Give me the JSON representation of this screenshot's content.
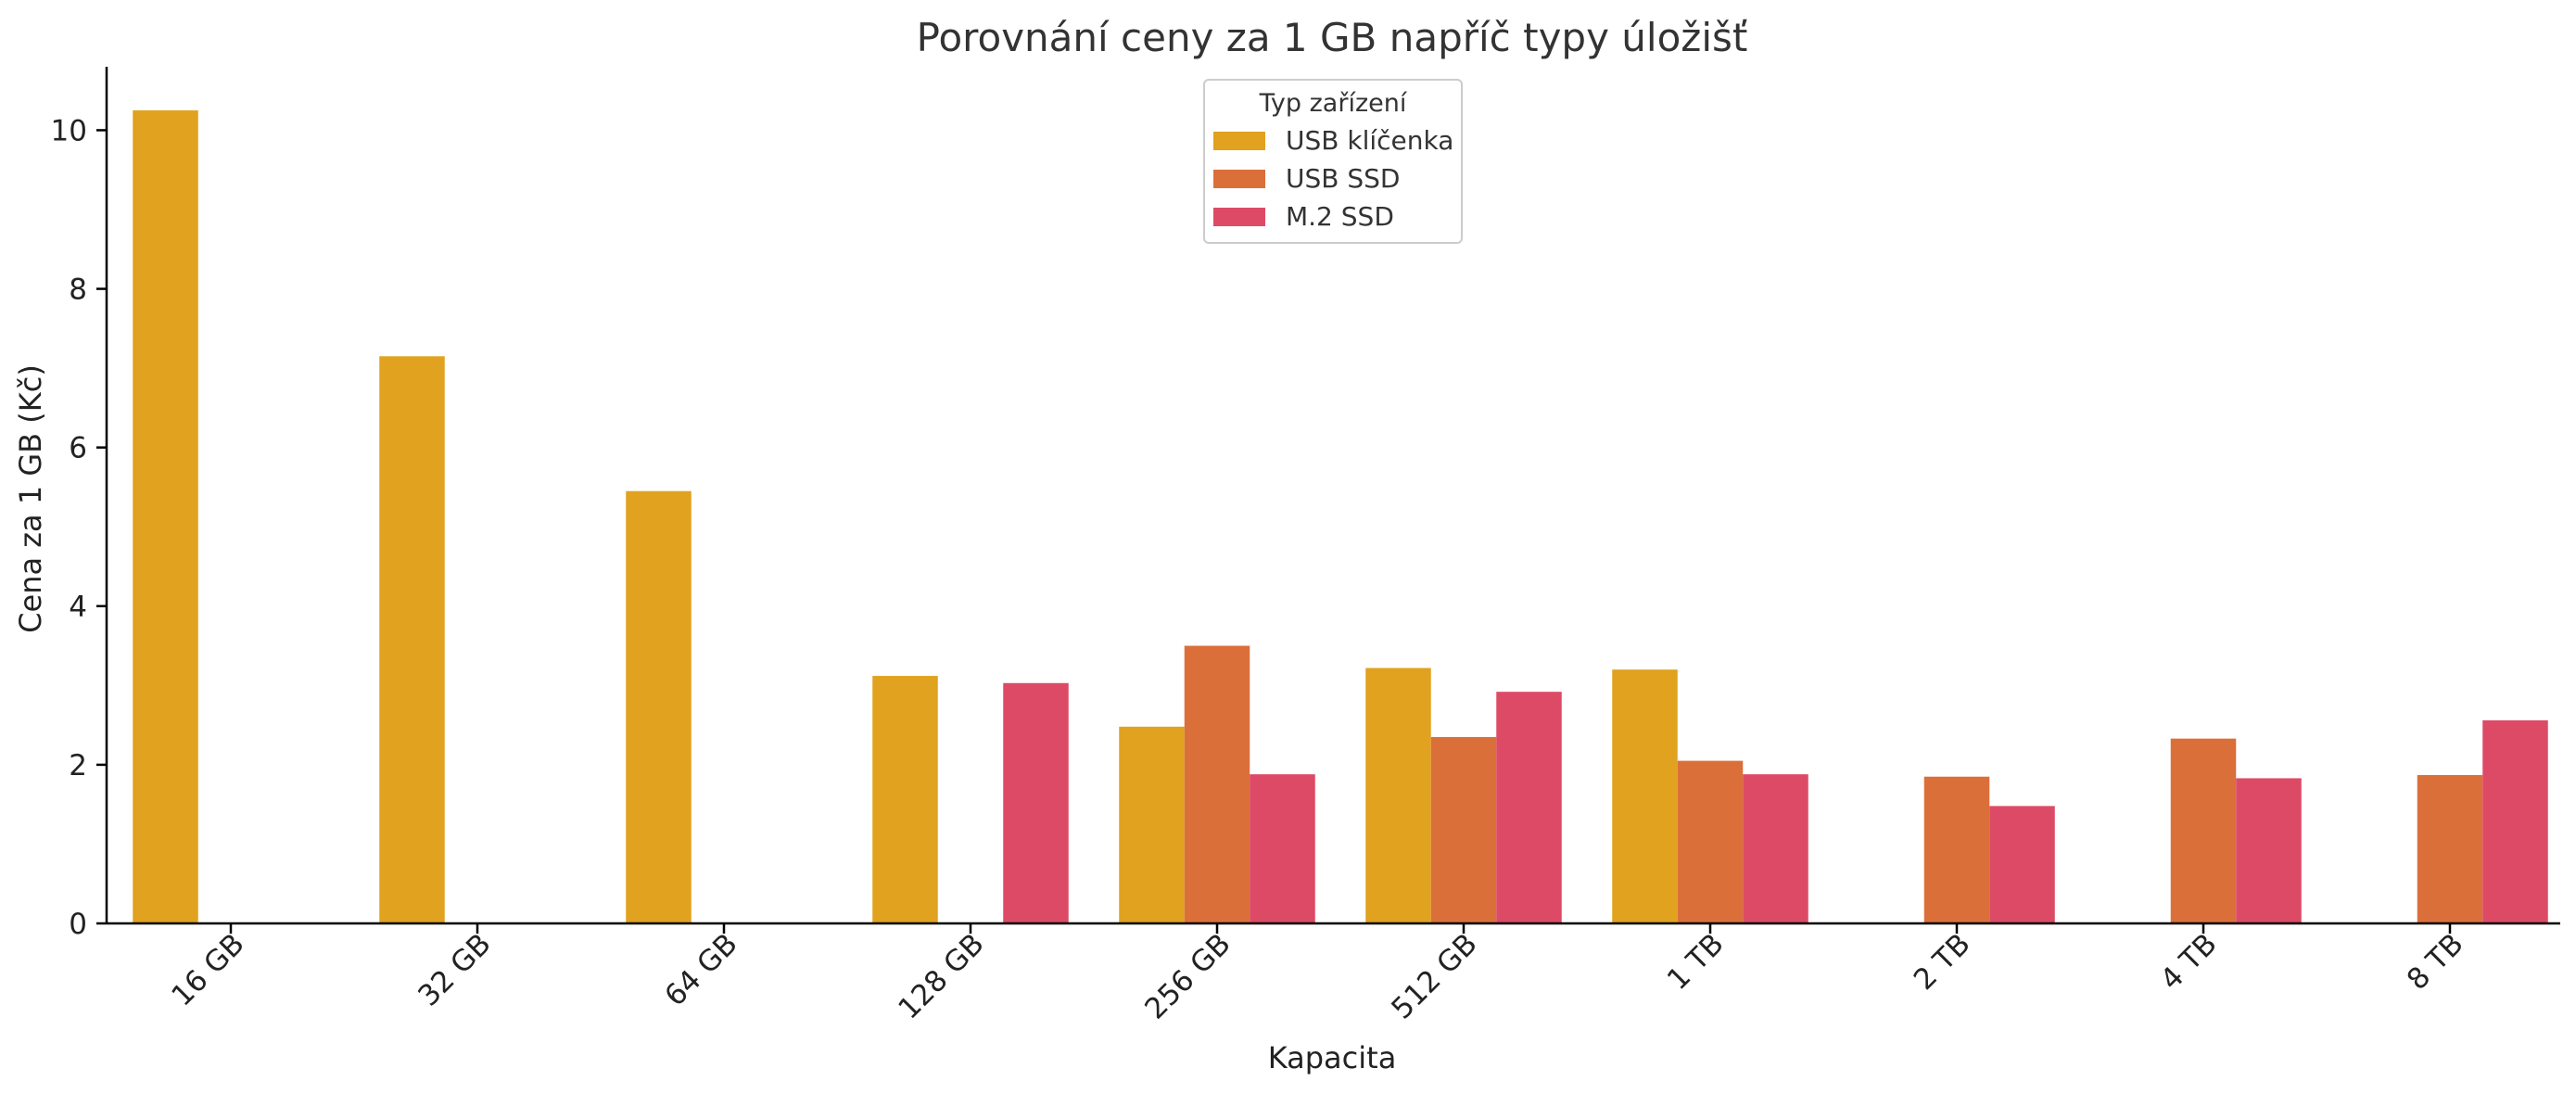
{
  "chart_data": {
    "type": "bar",
    "title": "Porovnání ceny za 1 GB napříč typy úložišť",
    "xlabel": "Kapacita",
    "ylabel": "Cena za 1 GB (Kč)",
    "categories": [
      "16 GB",
      "32 GB",
      "64 GB",
      "128 GB",
      "256 GB",
      "512 GB",
      "1 TB",
      "2 TB",
      "4 TB",
      "8 TB"
    ],
    "ylim": [
      0,
      10.8
    ],
    "yticks": [
      0,
      2,
      4,
      6,
      8,
      10
    ],
    "grid": false,
    "legend": {
      "title": "Typ zařízení",
      "position": "top-center"
    },
    "series": [
      {
        "name": "USB klíčenka",
        "color": "#E0A21F",
        "values": [
          10.25,
          7.15,
          5.45,
          3.12,
          2.48,
          3.22,
          3.2,
          null,
          null,
          null
        ]
      },
      {
        "name": "USB SSD",
        "color": "#DB6F3A",
        "values": [
          null,
          null,
          null,
          null,
          3.5,
          2.35,
          2.05,
          1.85,
          2.33,
          1.87
        ]
      },
      {
        "name": "M.2 SSD",
        "color": "#DD4A66",
        "values": [
          null,
          null,
          null,
          3.03,
          1.88,
          2.92,
          1.88,
          1.48,
          1.83,
          2.56
        ]
      }
    ]
  }
}
